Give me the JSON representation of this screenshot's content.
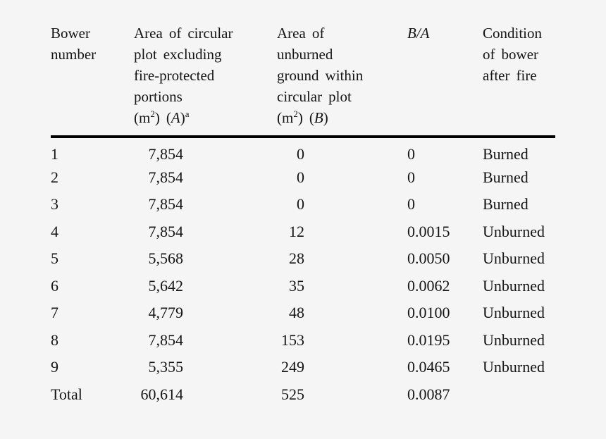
{
  "page": {
    "background_color": "#f5f5f5",
    "text_color": "#151515",
    "rule_color": "#000000"
  },
  "table": {
    "headers": [
      {
        "name": "bower-number",
        "lines": [
          [
            {
              "t": "Bower"
            }
          ],
          [
            {
              "t": "number"
            }
          ]
        ]
      },
      {
        "name": "area-circular-plot-excluding-fire-protected",
        "lines": [
          [
            {
              "t": "Area of circular"
            }
          ],
          [
            {
              "t": "plot excluding"
            }
          ],
          [
            {
              "t": "fire-protected"
            }
          ],
          [
            {
              "t": "portions"
            }
          ],
          [
            {
              "t": "(m"
            },
            {
              "t": "2",
              "s": "sup"
            },
            {
              "t": ") ("
            },
            {
              "t": "A",
              "s": "i"
            },
            {
              "t": ")"
            },
            {
              "t": "a",
              "s": "sup"
            }
          ]
        ]
      },
      {
        "name": "area-unburned-ground",
        "lines": [
          [
            {
              "t": "Area of"
            }
          ],
          [
            {
              "t": "unburned"
            }
          ],
          [
            {
              "t": "ground within"
            }
          ],
          [
            {
              "t": "circular plot"
            }
          ],
          [
            {
              "t": "(m"
            },
            {
              "t": "2",
              "s": "sup"
            },
            {
              "t": ") ("
            },
            {
              "t": "B",
              "s": "i"
            },
            {
              "t": ")"
            }
          ]
        ]
      },
      {
        "name": "b-over-a",
        "lines": [
          [
            {
              "t": "B/A",
              "s": "i"
            }
          ]
        ]
      },
      {
        "name": "condition-of-bower",
        "lines": [
          [
            {
              "t": "Condition"
            }
          ],
          [
            {
              "t": "of bower"
            }
          ],
          [
            {
              "t": "after fire"
            }
          ]
        ]
      }
    ],
    "rows": [
      [
        "1",
        "7,854",
        "0",
        "0",
        "Burned"
      ],
      [
        "2",
        "7,854",
        "0",
        "0",
        "Burned"
      ],
      [
        "3",
        "7,854",
        "0",
        "0",
        "Burned"
      ],
      [
        "4",
        "7,854",
        "12",
        "0.0015",
        "Unburned"
      ],
      [
        "5",
        "5,568",
        "28",
        "0.0050",
        "Unburned"
      ],
      [
        "6",
        "5,642",
        "35",
        "0.0062",
        "Unburned"
      ],
      [
        "7",
        "4,779",
        "48",
        "0.0100",
        "Unburned"
      ],
      [
        "8",
        "7,854",
        "153",
        "0.0195",
        "Unburned"
      ],
      [
        "9",
        "5,355",
        "249",
        "0.0465",
        "Unburned"
      ],
      [
        "Total",
        "60,614",
        "525",
        "0.0087",
        ""
      ]
    ]
  }
}
